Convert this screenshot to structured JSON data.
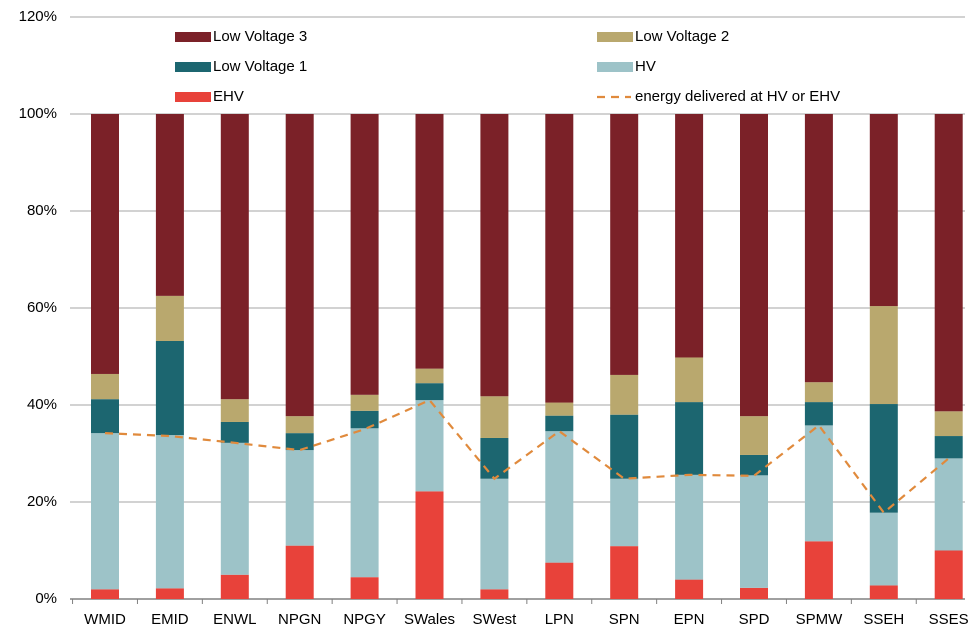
{
  "chart_data": {
    "type": "bar",
    "stacked": true,
    "categories": [
      "WMID",
      "EMID",
      "ENWL",
      "NPGN",
      "NPGY",
      "SWales",
      "SWest",
      "LPN",
      "SPN",
      "EPN",
      "SPD",
      "SPMW",
      "SSEH",
      "SSES"
    ],
    "series": [
      {
        "name": "EHV",
        "color": "#e8423a",
        "values": [
          2,
          2.2,
          5,
          11,
          4.5,
          22.2,
          2,
          7.5,
          10.9,
          4,
          2.3,
          11.9,
          2.8,
          10
        ]
      },
      {
        "name": "HV",
        "color": "#9dc3c8",
        "values": [
          32.2,
          31.6,
          27.2,
          19.7,
          30.7,
          18.8,
          22.8,
          27.1,
          13.9,
          21.6,
          23.2,
          23.9,
          15,
          19
        ]
      },
      {
        "name": "Low Voltage 1",
        "color": "#1c6670",
        "values": [
          7,
          19.4,
          4.3,
          3.5,
          3.6,
          3.5,
          8.4,
          3.2,
          13.2,
          15,
          4.2,
          4.8,
          22.4,
          4.6
        ]
      },
      {
        "name": "Low Voltage 2",
        "color": "#b9a86e",
        "values": [
          5.2,
          9.3,
          4.7,
          3.5,
          3.3,
          3,
          8.6,
          2.7,
          8.2,
          9.2,
          8,
          4.1,
          20.2,
          5.1
        ]
      },
      {
        "name": "Low Voltage 3",
        "color": "#7b2128",
        "values": [
          53.6,
          37.5,
          58.8,
          62.3,
          57.9,
          52.5,
          58.2,
          59.5,
          53.8,
          50.2,
          62.3,
          55.3,
          39.6,
          61.3
        ]
      },
      {
        "name": "energy delivered at HV or EHV",
        "type": "line",
        "dashed": true,
        "color": "#e08a3c",
        "values": [
          34.2,
          33.6,
          32.2,
          30.7,
          35,
          41,
          24.8,
          34.6,
          24.8,
          25.6,
          25.4,
          35.8,
          17.8,
          29
        ]
      }
    ],
    "ylim": [
      0,
      120
    ],
    "yticks": [
      {
        "value": 0,
        "label": "0%"
      },
      {
        "value": 20,
        "label": "20%"
      },
      {
        "value": 40,
        "label": "40%"
      },
      {
        "value": 60,
        "label": "60%"
      },
      {
        "value": 80,
        "label": "80%"
      },
      {
        "value": 100,
        "label": "100%"
      },
      {
        "value": 120,
        "label": "120%"
      }
    ],
    "grid": true
  }
}
